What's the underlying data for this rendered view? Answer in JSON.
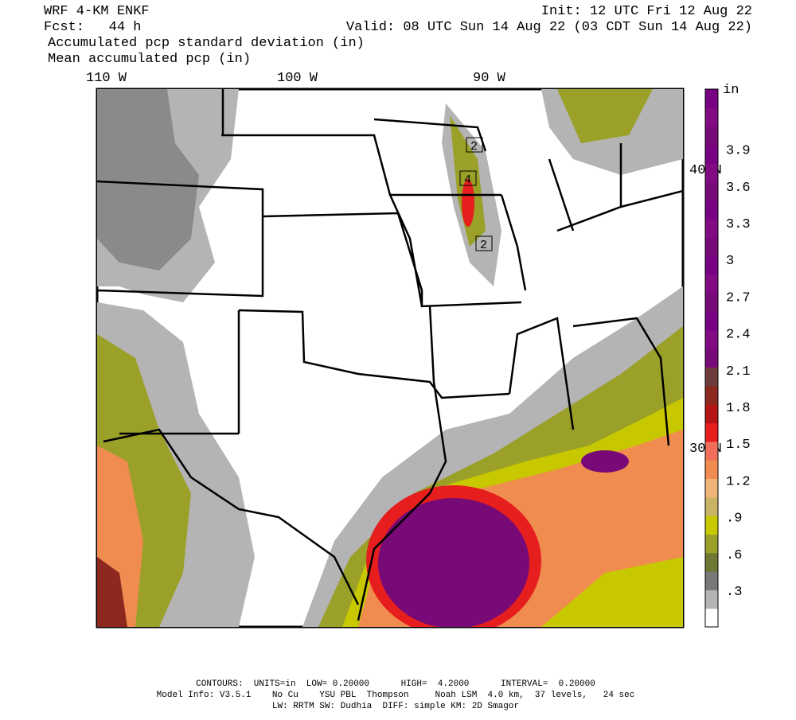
{
  "header": {
    "left": [
      "WRF 4-KM ENKF",
      "Fcst:   44 h"
    ],
    "right": [
      "Init: 12 UTC Fri 12 Aug 22",
      "Valid: 08 UTC Sun 14 Aug 22 (03 CDT Sun 14 Aug 22)"
    ],
    "fields": [
      "Accumulated pcp standard deviation (in)",
      "Mean accumulated pcp (in)"
    ]
  },
  "map": {
    "lon_labels": [
      "110 W",
      "100 W",
      "90 W"
    ],
    "lat_labels": [
      "40 N",
      "30 N"
    ],
    "contour_labels": [
      "2",
      "4",
      "2"
    ]
  },
  "colorbar": {
    "unit": "in",
    "labels": [
      ".3",
      ".6",
      ".9",
      "1.2",
      "1.5",
      "1.8",
      "2.1",
      "2.4",
      "2.7",
      "3",
      "3.3",
      "3.6",
      "3.9"
    ],
    "colors": [
      "#ffffff",
      "#b4b4b4",
      "#787878",
      "#6e7832",
      "#9aa028",
      "#c8c800",
      "#c8b464",
      "#f0b478",
      "#f08c50",
      "#f06e5a",
      "#e61e1e",
      "#b41414",
      "#8c281e",
      "#6e3c3c",
      "#780a78",
      "#820a82",
      "#780082",
      "#780a78",
      "#820a82",
      "#780082",
      "#780a78",
      "#820a82",
      "#780082",
      "#780a78",
      "#820a82",
      "#780082",
      "#780a78",
      "#820a82",
      "#780082"
    ]
  },
  "footer": [
    "CONTOURS:  UNITS=in  LOW= 0.20000      HIGH=  4.2000      INTERVAL=  0.20000",
    "Model Info: V3.5.1    No Cu    YSU PBL  Thompson     Noah LSM  4.0 km,  37 levels,   24 sec",
    "LW: RRTM SW: Dudhia  DIFF: simple KM: 2D Smagor"
  ]
}
